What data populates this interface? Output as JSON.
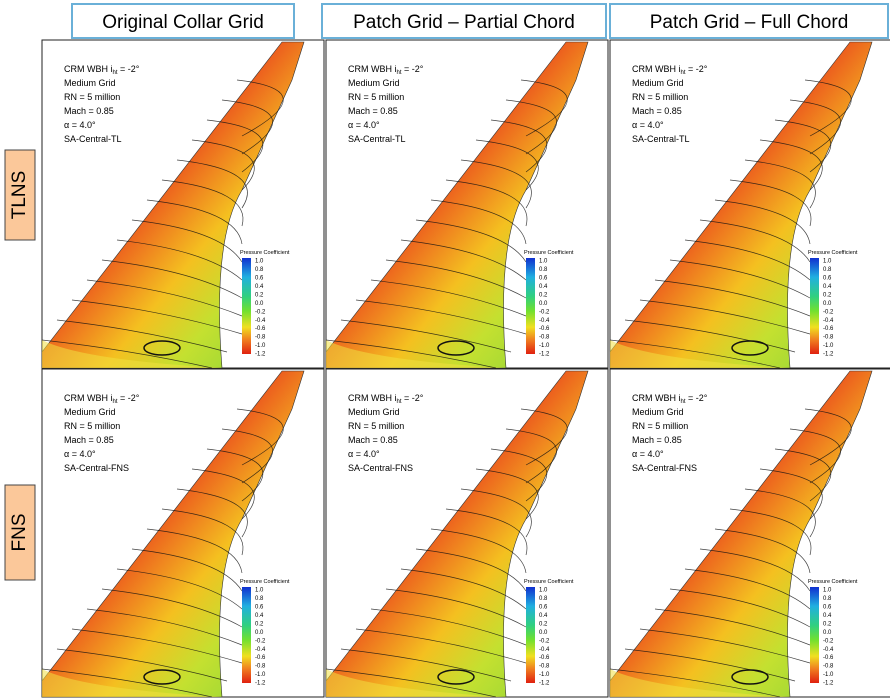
{
  "column_headers": [
    "Original Collar Grid",
    "Patch Grid – Partial Chord",
    "Patch Grid – Full Chord"
  ],
  "row_labels": [
    "TLNS",
    "FNS"
  ],
  "panels": [
    {
      "annotation": {
        "title": "CRM WBH i",
        "subscript": "ht",
        "title_end": " = -2°",
        "lines": [
          "Medium Grid",
          "RN = 5 million",
          "Mach = 0.85",
          "α = 4.0°",
          "SA-Central-TL"
        ]
      },
      "colorbar": {
        "title": "Pressure Coefficient",
        "ticks": [
          "1.0",
          "0.8",
          "0.6",
          "0.4",
          "0.2",
          "0.0",
          "-0.2",
          "-0.4",
          "-0.6",
          "-0.8",
          "-1.0",
          "-1.2"
        ]
      }
    },
    {
      "annotation": {
        "title": "CRM WBH i",
        "subscript": "ht",
        "title_end": " = -2°",
        "lines": [
          "Medium Grid",
          "RN = 5 million",
          "Mach = 0.85",
          "α = 4.0°",
          "SA-Central-TL"
        ]
      },
      "colorbar": {
        "title": "Pressure Coefficient",
        "ticks": [
          "1.0",
          "0.8",
          "0.6",
          "0.4",
          "0.2",
          "0.0",
          "-0.2",
          "-0.4",
          "-0.6",
          "-0.8",
          "-1.0",
          "-1.2"
        ]
      }
    },
    {
      "annotation": {
        "title": "CRM WBH i",
        "subscript": "ht",
        "title_end": " = -2°",
        "lines": [
          "Medium Grid",
          "RN = 5 million",
          "Mach = 0.85",
          "α = 4.0°",
          "SA-Central-TL"
        ]
      },
      "colorbar": {
        "title": "Pressure Coefficient",
        "ticks": [
          "1.0",
          "0.8",
          "0.6",
          "0.4",
          "0.2",
          "0.0",
          "-0.2",
          "-0.4",
          "-0.6",
          "-0.8",
          "-1.0",
          "-1.2"
        ]
      }
    },
    {
      "annotation": {
        "title": "CRM WBH i",
        "subscript": "ht",
        "title_end": " = -2°",
        "lines": [
          "Medium Grid",
          "RN = 5 million",
          "Mach = 0.85",
          "α = 4.0°",
          "SA-Central-FNS"
        ]
      },
      "colorbar": {
        "title": "Pressure Coefficient",
        "ticks": [
          "1.0",
          "0.8",
          "0.6",
          "0.4",
          "0.2",
          "0.0",
          "-0.2",
          "-0.4",
          "-0.6",
          "-0.8",
          "-1.0",
          "-1.2"
        ]
      }
    },
    {
      "annotation": {
        "title": "CRM WBH i",
        "subscript": "ht",
        "title_end": " = -2°",
        "lines": [
          "Medium Grid",
          "RN = 5 million",
          "Mach = 0.85",
          "α = 4.0°",
          "SA-Central-FNS"
        ]
      },
      "colorbar": {
        "title": "Pressure Coefficient",
        "ticks": [
          "1.0",
          "0.8",
          "0.6",
          "0.4",
          "0.2",
          "0.0",
          "-0.2",
          "-0.4",
          "-0.6",
          "-0.8",
          "-1.0",
          "-1.2"
        ]
      }
    },
    {
      "annotation": {
        "title": "CRM WBH i",
        "subscript": "ht",
        "title_end": " = -2°",
        "lines": [
          "Medium Grid",
          "RN = 5 million",
          "Mach = 0.85",
          "α = 4.0°",
          "SA-Central-FNS"
        ]
      },
      "colorbar": {
        "title": "Pressure Coefficient",
        "ticks": [
          "1.0",
          "0.8",
          "0.6",
          "0.4",
          "0.2",
          "0.0",
          "-0.2",
          "-0.4",
          "-0.6",
          "-0.8",
          "-1.0",
          "-1.2"
        ]
      }
    }
  ]
}
